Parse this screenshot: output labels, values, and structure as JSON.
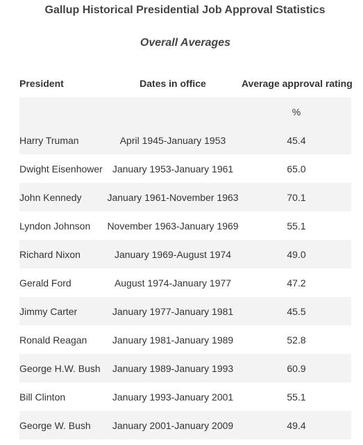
{
  "title": "Gallup Historical Presidential Job Approval Statistics",
  "subtitle": "Overall Averages",
  "table": {
    "headers": [
      "President",
      "Dates in office",
      "Average approval rating"
    ],
    "unit_row": [
      "",
      "",
      "%"
    ],
    "rows": [
      [
        "Harry Truman",
        "April 1945-January 1953",
        "45.4"
      ],
      [
        "Dwight Eisenhower",
        "January 1953-January 1961",
        "65.0"
      ],
      [
        "John Kennedy",
        "January 1961-November 1963",
        "70.1"
      ],
      [
        "Lyndon Johnson",
        "November 1963-January 1969",
        "55.1"
      ],
      [
        "Richard Nixon",
        "January 1969-August 1974",
        "49.0"
      ],
      [
        "Gerald Ford",
        "August 1974-January 1977",
        "47.2"
      ],
      [
        "Jimmy Carter",
        "January 1977-January 1981",
        "45.5"
      ],
      [
        "Ronald Reagan",
        "January 1981-January 1989",
        "52.8"
      ],
      [
        "George H.W. Bush",
        "January 1989-January 1993",
        "60.9"
      ],
      [
        "Bill Clinton",
        "January 1993-January 2001",
        "55.1"
      ],
      [
        "George W. Bush",
        "January 2001-January 2009",
        "49.4"
      ]
    ]
  }
}
